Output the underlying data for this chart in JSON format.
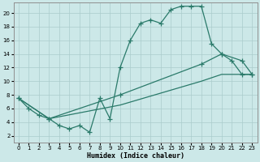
{
  "title": "",
  "xlabel": "Humidex (Indice chaleur)",
  "ylabel": "",
  "background_color": "#cce8e8",
  "grid_color": "#aacccc",
  "line_color": "#2a7a6a",
  "xlim": [
    -0.5,
    23.5
  ],
  "ylim": [
    1,
    21.5
  ],
  "xticks": [
    0,
    1,
    2,
    3,
    4,
    5,
    6,
    7,
    8,
    9,
    10,
    11,
    12,
    13,
    14,
    15,
    16,
    17,
    18,
    19,
    20,
    21,
    22,
    23
  ],
  "yticks": [
    2,
    4,
    6,
    8,
    10,
    12,
    14,
    16,
    18,
    20
  ],
  "line_max": {
    "x": [
      0,
      1,
      2,
      3,
      4,
      5,
      6,
      7,
      8,
      9,
      10,
      11,
      12,
      13,
      14,
      15,
      16,
      17,
      18,
      19,
      20,
      21,
      22,
      23
    ],
    "y": [
      7.5,
      6,
      5,
      4.5,
      3.5,
      3,
      3.5,
      2.5,
      7.5,
      4.5,
      12,
      16,
      18.5,
      19,
      18.5,
      20.5,
      21,
      21,
      21,
      15.5,
      14,
      13,
      11,
      11
    ]
  },
  "line_min": {
    "x": [
      0,
      3,
      10,
      18,
      20,
      22,
      23
    ],
    "y": [
      7.5,
      4.5,
      6.5,
      10,
      11,
      11,
      11
    ]
  },
  "line_mean": {
    "x": [
      0,
      3,
      10,
      18,
      20,
      22,
      23
    ],
    "y": [
      7.5,
      4.5,
      8,
      12.5,
      14,
      13,
      11
    ]
  }
}
